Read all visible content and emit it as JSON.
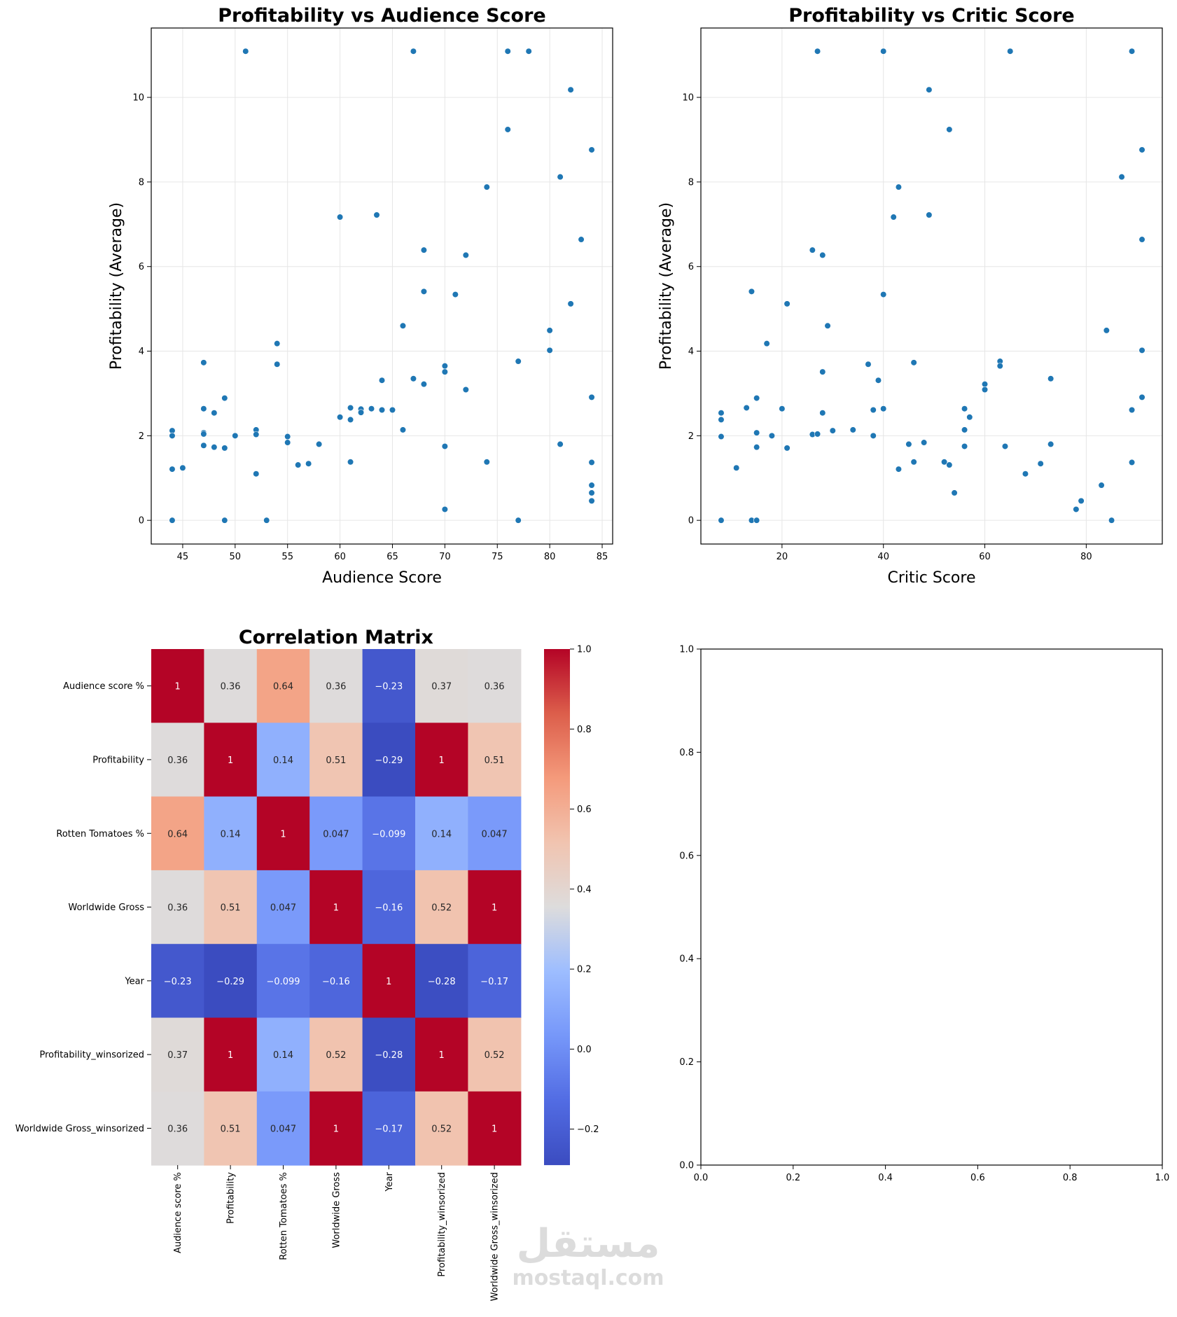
{
  "chart_data": [
    {
      "type": "scatter",
      "title": "Profitability vs Audience Score",
      "xlabel": "Audience Score",
      "ylabel": "Profitability (Average)",
      "xlim": [
        42.0,
        86.0
      ],
      "ylim": [
        -0.56,
        11.64
      ],
      "xticks": [
        45,
        50,
        55,
        60,
        65,
        70,
        75,
        80,
        85
      ],
      "yticks": [
        0,
        2,
        4,
        6,
        8,
        10
      ],
      "grid": true,
      "color": "#1f77b4",
      "points": [
        [
          44,
          2.12
        ],
        [
          44,
          2.0
        ],
        [
          44,
          1.21
        ],
        [
          44,
          0.0
        ],
        [
          45,
          1.24
        ],
        [
          47,
          3.73
        ],
        [
          47,
          2.64
        ],
        [
          47,
          2.07
        ],
        [
          47,
          2.04
        ],
        [
          47,
          1.77
        ],
        [
          48,
          2.54
        ],
        [
          48,
          1.73
        ],
        [
          49,
          2.89
        ],
        [
          49,
          1.71
        ],
        [
          49,
          0.0
        ],
        [
          50,
          2.0
        ],
        [
          51,
          11.09
        ],
        [
          52,
          2.14
        ],
        [
          52,
          2.03
        ],
        [
          52,
          1.1
        ],
        [
          53,
          0.0
        ],
        [
          54,
          4.18
        ],
        [
          54,
          3.69
        ],
        [
          55,
          1.98
        ],
        [
          55,
          1.84
        ],
        [
          56,
          1.31
        ],
        [
          57,
          1.34
        ],
        [
          58,
          1.8
        ],
        [
          60,
          7.17
        ],
        [
          60,
          2.44
        ],
        [
          61,
          2.66
        ],
        [
          61,
          2.38
        ],
        [
          61,
          1.38
        ],
        [
          62,
          2.63
        ],
        [
          62,
          2.55
        ],
        [
          63,
          2.64
        ],
        [
          63.5,
          7.22
        ],
        [
          64,
          3.31
        ],
        [
          64,
          2.61
        ],
        [
          65,
          2.61
        ],
        [
          66,
          4.6
        ],
        [
          66,
          2.14
        ],
        [
          67,
          11.09
        ],
        [
          67,
          3.35
        ],
        [
          68,
          6.39
        ],
        [
          68,
          5.41
        ],
        [
          68,
          3.22
        ],
        [
          70,
          3.65
        ],
        [
          70,
          3.51
        ],
        [
          70,
          1.75
        ],
        [
          70,
          0.26
        ],
        [
          71,
          5.34
        ],
        [
          72,
          6.27
        ],
        [
          72,
          3.09
        ],
        [
          74,
          7.88
        ],
        [
          74,
          1.38
        ],
        [
          76,
          11.09
        ],
        [
          76,
          9.24
        ],
        [
          77,
          3.76
        ],
        [
          77,
          0.0
        ],
        [
          78,
          11.09
        ],
        [
          80,
          4.49
        ],
        [
          80,
          4.02
        ],
        [
          81,
          8.12
        ],
        [
          81,
          1.8
        ],
        [
          82,
          10.18
        ],
        [
          82,
          5.12
        ],
        [
          83,
          6.64
        ],
        [
          84,
          8.76
        ],
        [
          84,
          2.91
        ],
        [
          84,
          1.37
        ],
        [
          84,
          0.83
        ],
        [
          84,
          0.65
        ],
        [
          84,
          0.46
        ]
      ]
    },
    {
      "type": "scatter",
      "title": "Profitability vs Critic Score",
      "xlabel": "Critic Score",
      "ylabel": "Profitability (Average)",
      "xlim": [
        4.0,
        95.0
      ],
      "ylim": [
        -0.56,
        11.64
      ],
      "xticks": [
        20,
        40,
        60,
        80
      ],
      "yticks": [
        0,
        2,
        4,
        6,
        8,
        10
      ],
      "grid": true,
      "color": "#1f77b4",
      "points": [
        [
          8,
          2.54
        ],
        [
          8,
          2.38
        ],
        [
          8,
          1.98
        ],
        [
          8,
          0.0
        ],
        [
          11,
          1.24
        ],
        [
          13,
          2.66
        ],
        [
          14,
          5.41
        ],
        [
          14,
          0.0
        ],
        [
          15,
          2.89
        ],
        [
          15,
          2.07
        ],
        [
          15,
          1.73
        ],
        [
          15,
          0.0
        ],
        [
          17,
          4.18
        ],
        [
          18,
          2.0
        ],
        [
          20,
          2.64
        ],
        [
          21,
          5.12
        ],
        [
          21,
          1.71
        ],
        [
          26,
          6.39
        ],
        [
          26,
          2.03
        ],
        [
          27,
          11.09
        ],
        [
          27,
          2.04
        ],
        [
          28,
          6.27
        ],
        [
          28,
          3.51
        ],
        [
          28,
          2.54
        ],
        [
          29,
          4.6
        ],
        [
          30,
          2.12
        ],
        [
          34,
          2.14
        ],
        [
          37,
          3.69
        ],
        [
          38,
          2.61
        ],
        [
          38,
          2.0
        ],
        [
          39,
          3.31
        ],
        [
          40,
          11.09
        ],
        [
          40,
          5.34
        ],
        [
          40,
          2.64
        ],
        [
          42,
          7.17
        ],
        [
          43,
          7.88
        ],
        [
          43,
          1.21
        ],
        [
          45,
          1.8
        ],
        [
          46,
          3.73
        ],
        [
          46,
          1.38
        ],
        [
          48,
          1.84
        ],
        [
          49,
          10.18
        ],
        [
          49,
          7.22
        ],
        [
          52,
          1.38
        ],
        [
          53,
          9.24
        ],
        [
          53,
          1.31
        ],
        [
          54,
          0.65
        ],
        [
          56,
          2.64
        ],
        [
          56,
          2.14
        ],
        [
          56,
          1.75
        ],
        [
          57,
          2.44
        ],
        [
          60,
          3.22
        ],
        [
          60,
          3.09
        ],
        [
          63,
          3.76
        ],
        [
          63,
          3.65
        ],
        [
          64,
          1.75
        ],
        [
          65,
          11.09
        ],
        [
          68,
          1.1
        ],
        [
          71,
          1.34
        ],
        [
          73,
          3.35
        ],
        [
          73,
          1.8
        ],
        [
          78,
          0.26
        ],
        [
          79,
          0.46
        ],
        [
          83,
          0.83
        ],
        [
          84,
          4.49
        ],
        [
          85,
          0.0
        ],
        [
          87,
          8.12
        ],
        [
          89,
          11.09
        ],
        [
          89,
          2.61
        ],
        [
          89,
          1.37
        ],
        [
          91,
          8.76
        ],
        [
          91,
          6.64
        ],
        [
          91,
          4.02
        ],
        [
          91,
          2.91
        ]
      ]
    },
    {
      "type": "heatmap",
      "title": "Correlation Matrix",
      "labels": [
        "Audience score %",
        "Profitability",
        "Rotten Tomatoes %",
        "Worldwide Gross",
        "Year",
        "Profitability_winsorized",
        "Worldwide Gross_winsorized"
      ],
      "values": [
        [
          1,
          0.36,
          0.64,
          0.36,
          -0.23,
          0.37,
          0.36
        ],
        [
          0.36,
          1,
          0.14,
          0.51,
          -0.29,
          1,
          0.51
        ],
        [
          0.64,
          0.14,
          1,
          0.047,
          -0.099,
          0.14,
          0.047
        ],
        [
          0.36,
          0.51,
          0.047,
          1,
          -0.16,
          0.52,
          1
        ],
        [
          -0.23,
          -0.29,
          -0.099,
          -0.16,
          1,
          -0.28,
          -0.17
        ],
        [
          0.37,
          1,
          0.14,
          0.52,
          -0.28,
          1,
          0.52
        ],
        [
          0.36,
          0.51,
          0.047,
          1,
          -0.17,
          0.52,
          1
        ]
      ],
      "annot": true,
      "cmap": "coolwarm",
      "vmin": -0.29,
      "vmax": 1.0,
      "colorbar_ticks": [
        -0.2,
        0.0,
        0.2,
        0.4,
        0.6,
        0.8,
        1.0
      ]
    },
    {
      "type": "scatter",
      "title": "",
      "xlim": [
        0,
        1
      ],
      "ylim": [
        0,
        1
      ],
      "xticks": [
        0.0,
        0.2,
        0.4,
        0.6,
        0.8,
        1.0
      ],
      "yticks": [
        0.0,
        0.2,
        0.4,
        0.6,
        0.8,
        1.0
      ],
      "points": []
    }
  ],
  "watermark": {
    "arabic": "مستقل",
    "latin": "mostaql.com"
  }
}
